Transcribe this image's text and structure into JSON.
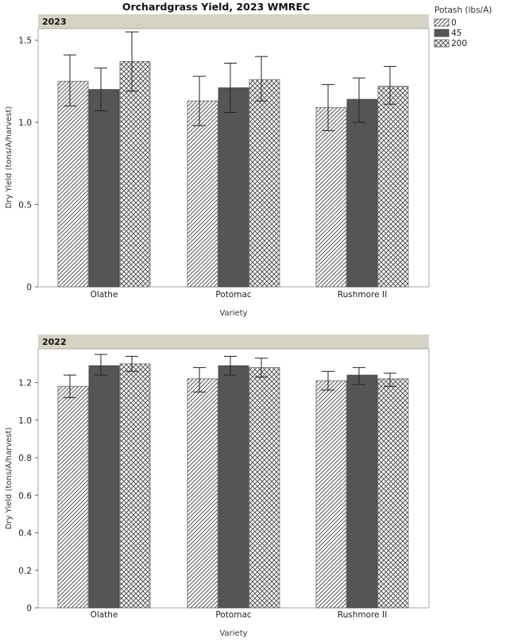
{
  "title": "Orchardgrass Yield, 2023 WMREC",
  "legend": {
    "title": "Potash (lbs/A)",
    "items": [
      {
        "label": "0",
        "pattern": "diag"
      },
      {
        "label": "45",
        "pattern": "solid"
      },
      {
        "label": "200",
        "pattern": "cross"
      }
    ]
  },
  "colors": {
    "solid_bar": "#555555",
    "panel_header": "#d6d3c4",
    "hatch": "#555555"
  },
  "chart_data": [
    {
      "type": "bar",
      "panel": "2023",
      "categories": [
        "Olathe",
        "Potomac",
        "Rushmore II"
      ],
      "xlabel": "Variety",
      "ylabel": "Dry Yield (tons/A/harvest)",
      "ylim": [
        0,
        1.57
      ],
      "yticks": [
        0,
        0.5,
        1.0,
        1.5
      ],
      "tick_labels": [
        "0",
        "0.5",
        "1.0",
        "1.5"
      ],
      "series": [
        {
          "name": "0",
          "values": [
            1.25,
            1.13,
            1.09
          ],
          "err_low": [
            1.1,
            0.98,
            0.95
          ],
          "err_high": [
            1.41,
            1.28,
            1.23
          ]
        },
        {
          "name": "45",
          "values": [
            1.2,
            1.21,
            1.14
          ],
          "err_low": [
            1.07,
            1.06,
            1.0
          ],
          "err_high": [
            1.33,
            1.36,
            1.27
          ]
        },
        {
          "name": "200",
          "values": [
            1.37,
            1.26,
            1.22
          ],
          "err_low": [
            1.19,
            1.13,
            1.11
          ],
          "err_high": [
            1.55,
            1.4,
            1.34
          ]
        }
      ]
    },
    {
      "type": "bar",
      "panel": "2022",
      "categories": [
        "Olathe",
        "Potomac",
        "Rushmore II"
      ],
      "xlabel": "Variety",
      "ylabel": "Dry Yield (tons/A/harvest)",
      "ylim": [
        0,
        1.38
      ],
      "yticks": [
        0,
        0.2,
        0.4,
        0.6,
        0.8,
        1.0,
        1.2
      ],
      "tick_labels": [
        "0",
        "0.2",
        "0.4",
        "0.6",
        "0.8",
        "1.0",
        "1.2"
      ],
      "series": [
        {
          "name": "0",
          "values": [
            1.18,
            1.22,
            1.21
          ],
          "err_low": [
            1.12,
            1.15,
            1.16
          ],
          "err_high": [
            1.24,
            1.28,
            1.26
          ]
        },
        {
          "name": "45",
          "values": [
            1.29,
            1.29,
            1.24
          ],
          "err_low": [
            1.24,
            1.24,
            1.19
          ],
          "err_high": [
            1.35,
            1.34,
            1.28
          ]
        },
        {
          "name": "200",
          "values": [
            1.3,
            1.28,
            1.22
          ],
          "err_low": [
            1.26,
            1.23,
            1.18
          ],
          "err_high": [
            1.34,
            1.33,
            1.25
          ]
        }
      ]
    }
  ]
}
